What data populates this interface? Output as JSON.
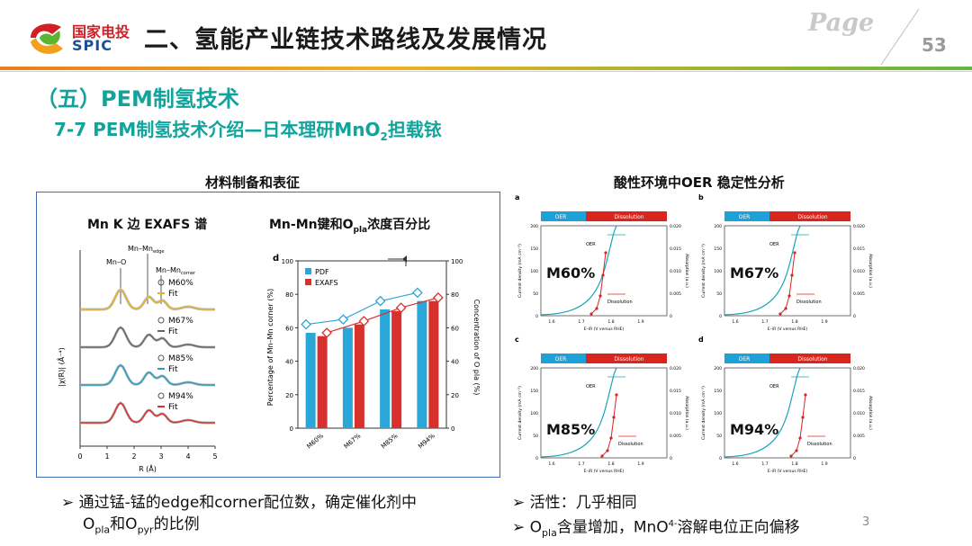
{
  "header": {
    "logo_cn": "国家电投",
    "logo_en": "SPIC",
    "title": "二、氢能产业链技术路线及发展情况",
    "page_word": "Page",
    "page_number": "53"
  },
  "section": {
    "title": "（五）PEM制氢技术",
    "subtitle_pre": "7-7 PEM制氢技术介绍—日本理研MnO",
    "subtitle_sub": "2",
    "subtitle_post": "担载铱"
  },
  "left": {
    "caption": "材料制备和表征",
    "exafs_title": "Mn K 边  EXAFS 谱",
    "bond_title_pre": "Mn-Mn键和O",
    "bond_title_sub": "pla",
    "bond_title_post": "浓度百分比",
    "exafs": {
      "peak_labels": [
        "Mn–O",
        "Mn–Mn",
        "Mn–Mn"
      ],
      "peak_subs": [
        "edge",
        "corner"
      ],
      "samples": [
        "M60%",
        "M67%",
        "M85%",
        "M94%"
      ],
      "fit_label": "Fit",
      "x_ticks": [
        "0",
        "1",
        "2",
        "3",
        "4",
        "5"
      ],
      "x_label": "R (Å)",
      "y_label": "|χ(R)| (Å⁻⁴)",
      "colors": [
        "#e6b428",
        "#666666",
        "#2a9fc0",
        "#d8302c"
      ]
    },
    "bar_chart": {
      "panel_letter": "d",
      "legend": [
        "PDF",
        "EXAFS"
      ],
      "categories": [
        "M60%",
        "M67%",
        "M85%",
        "M94%"
      ],
      "pdf": [
        57,
        60,
        71,
        76
      ],
      "exafs": [
        55,
        62,
        70,
        76
      ],
      "y_ticks": [
        "0",
        "20",
        "40",
        "60",
        "80",
        "100"
      ],
      "ylabel_left": "Percentage of Mn–Mn corner (%)",
      "ylabel_right": "Concentration of O pla (%)",
      "colors": {
        "pdf": "#2aa6d8",
        "exafs": "#d8302c"
      }
    }
  },
  "right": {
    "caption": "酸性环境中OER 稳定性分析",
    "panels": [
      {
        "letter": "a",
        "sample": "M60%"
      },
      {
        "letter": "b",
        "sample": "M67%"
      },
      {
        "letter": "c",
        "sample": "M85%"
      },
      {
        "letter": "d",
        "sample": "M94%"
      }
    ],
    "bar_oer": "OER",
    "bar_diss": "Dissolution",
    "oer": "OER",
    "dissolution": "Dissolution",
    "y_left": [
      "0",
      "50",
      "100",
      "150",
      "200"
    ],
    "y_right": [
      "0",
      "0.005",
      "0.010",
      "0.015",
      "0.020"
    ],
    "x_ticks": [
      "1.6",
      "1.7",
      "1.8",
      "1.9"
    ],
    "x_label": "E–iR (V versus RHE)",
    "y_label_left": "Current density (mA cm⁻²)",
    "y_label_right": "Absorption (a.u.)"
  },
  "bullets_left": {
    "line1": "通过锰-锰的edge和corner配位数，确定催化剂中",
    "line2_a": "O",
    "line2_sub1": "pla",
    "line2_b": "和O",
    "line2_sub2": "pyr",
    "line2_c": "的比例"
  },
  "bullets_right": {
    "line1": "活性：几乎相同",
    "line2_a": "O",
    "line2_sub": "pla",
    "line2_b": "含量增加，MnO",
    "line2_sup": "4-",
    "line2_c": "溶解电位正向偏移"
  },
  "footer_number": "3"
}
